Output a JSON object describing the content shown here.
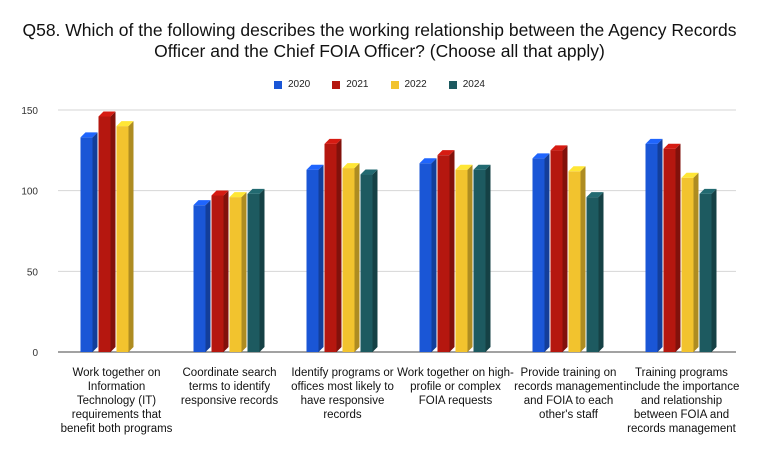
{
  "chart_data": {
    "type": "bar",
    "title_lines": [
      "Q58. Which of the following describes the working relationship between the Agency Records",
      "Officer and the Chief FOIA Officer? (Choose all that apply)"
    ],
    "categories": [
      "Work together on Information Technology (IT) requirements that benefit both programs",
      "Coordinate search terms to identify responsive records",
      "Identify programs or offices most likely to have responsive records",
      "Work together on high-profile or complex FOIA requests",
      "Provide training on records management and FOIA to each other's staff",
      "Training programs include the importance and relationship between FOIA and records management"
    ],
    "series": [
      {
        "name": "2020",
        "color": "#1a56d6",
        "values": [
          133,
          91,
          113,
          117,
          120,
          129
        ]
      },
      {
        "name": "2021",
        "color": "#b5170f",
        "values": [
          146,
          97,
          129,
          122,
          125,
          126
        ]
      },
      {
        "name": "2022",
        "color": "#f2c32e",
        "values": [
          140,
          96,
          114,
          113,
          112,
          108
        ]
      },
      {
        "name": "2024",
        "color": "#1d5a60",
        "values": [
          0,
          98,
          110,
          113,
          96,
          98
        ]
      }
    ],
    "yticks": [
      "0",
      "50",
      "100",
      "150"
    ],
    "ylim": [
      0,
      150
    ],
    "grid": true,
    "legend_position": "top-center",
    "xlabel": "",
    "ylabel": ""
  }
}
